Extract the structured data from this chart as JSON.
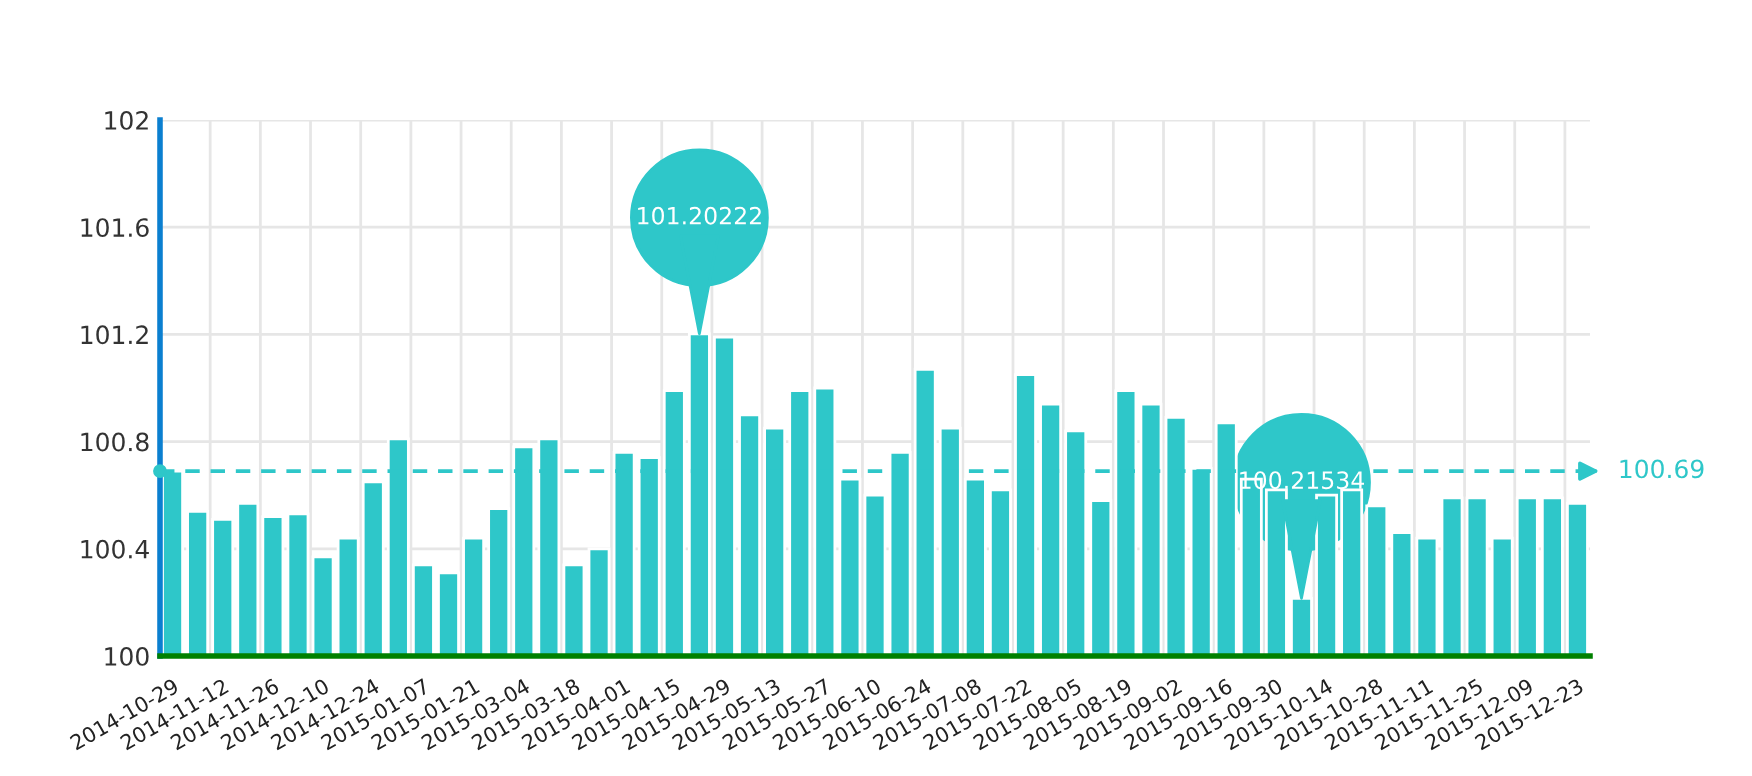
{
  "chart_data": {
    "type": "bar",
    "categories": [
      "2014-10-29",
      null,
      "2014-11-12",
      null,
      "2014-11-26",
      null,
      "2014-12-10",
      null,
      "2014-12-24",
      null,
      "2015-01-07",
      null,
      "2015-01-21",
      null,
      "2015-03-04",
      null,
      "2015-03-18",
      null,
      "2015-04-01",
      null,
      "2015-04-15",
      null,
      "2015-04-29",
      null,
      "2015-05-13",
      null,
      "2015-05-27",
      null,
      "2015-06-10",
      null,
      "2015-06-24",
      null,
      "2015-07-08",
      null,
      "2015-07-22",
      null,
      "2015-08-05",
      null,
      "2015-08-19",
      null,
      "2015-09-02",
      null,
      "2015-09-16",
      null,
      "2015-09-30",
      null,
      "2015-10-14",
      null,
      "2015-10-28",
      null,
      "2015-11-11",
      null,
      "2015-11-25",
      null,
      "2015-12-09",
      null,
      "2015-12-23"
    ],
    "series": [
      {
        "color": "#2ec7c9",
        "values": [
          100.69,
          100.54,
          100.51,
          100.57,
          100.52,
          100.53,
          100.37,
          100.44,
          100.65,
          100.81,
          100.34,
          100.31,
          100.44,
          100.55,
          100.78,
          100.81,
          100.34,
          100.4,
          100.76,
          100.74,
          100.99,
          101.20222,
          101.19,
          100.9,
          100.85,
          100.99,
          101.0,
          100.66,
          100.6,
          100.76,
          101.07,
          100.85,
          100.66,
          100.62,
          101.05,
          100.94,
          100.84,
          100.58,
          100.99,
          100.94,
          100.89,
          100.7,
          100.87,
          100.66,
          100.62,
          100.21534,
          100.6,
          100.62,
          100.56,
          100.46,
          100.44,
          100.59,
          100.59,
          100.44,
          100.59,
          100.59,
          100.57
        ]
      }
    ],
    "ylim": [
      100,
      102
    ],
    "yticks": [
      100,
      100.4,
      100.8,
      101.2,
      101.6,
      102
    ],
    "grid": true,
    "ref_lines": [
      {
        "axis": "y",
        "value": 100.69,
        "label": "100.69",
        "color": "#2ec7c9",
        "line_style": "dashed"
      }
    ],
    "annotations": [
      {
        "text": "101.20222",
        "y": 101.20222
      },
      {
        "text": "100.21534",
        "y": 100.21534
      }
    ]
  }
}
